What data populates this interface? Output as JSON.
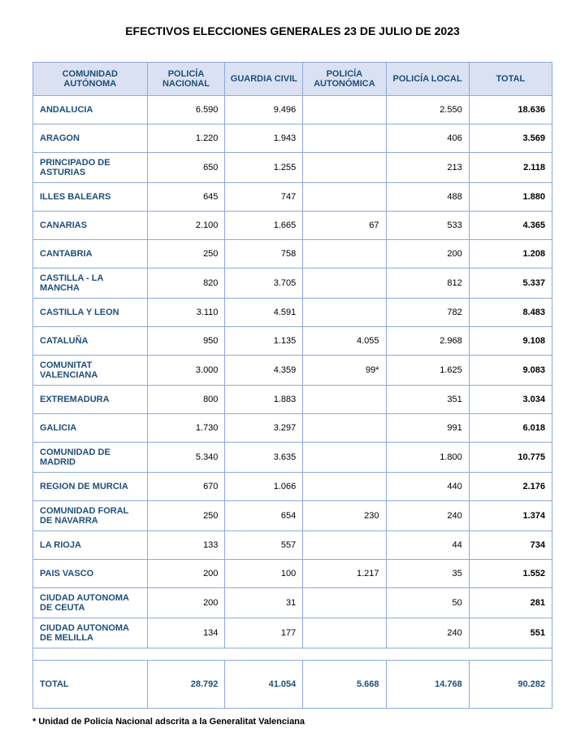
{
  "title": "EFECTIVOS ELECCIONES GENERALES 23 DE JULIO DE 2023",
  "columns": [
    "COMUNIDAD AUTÓNOMA",
    "POLICÍA NACIONAL",
    "GUARDIA CIVIL",
    "POLICÍA AUTONÓMICA",
    "POLICÍA LOCAL",
    "TOTAL"
  ],
  "rows": [
    {
      "c0": "ANDALUCIA",
      "c1": "6.590",
      "c2": "9.496",
      "c3": "",
      "c4": "2.550",
      "c5": "18.636"
    },
    {
      "c0": "ARAGON",
      "c1": "1.220",
      "c2": "1.943",
      "c3": "",
      "c4": "406",
      "c5": "3.569"
    },
    {
      "c0": "PRINCIPADO DE ASTURIAS",
      "c1": "650",
      "c2": "1.255",
      "c3": "",
      "c4": "213",
      "c5": "2.118"
    },
    {
      "c0": "ILLES BALEARS",
      "c1": "645",
      "c2": "747",
      "c3": "",
      "c4": "488",
      "c5": "1.880"
    },
    {
      "c0": "CANARIAS",
      "c1": "2.100",
      "c2": "1.665",
      "c3": "67",
      "c4": "533",
      "c5": "4.365"
    },
    {
      "c0": "CANTABRIA",
      "c1": "250",
      "c2": "758",
      "c3": "",
      "c4": "200",
      "c5": "1.208"
    },
    {
      "c0": "CASTILLA - LA MANCHA",
      "c1": "820",
      "c2": "3.705",
      "c3": "",
      "c4": "812",
      "c5": "5.337"
    },
    {
      "c0": "CASTILLA Y LEON",
      "c1": "3.110",
      "c2": "4.591",
      "c3": "",
      "c4": "782",
      "c5": "8.483"
    },
    {
      "c0": "CATALUÑA",
      "c1": "950",
      "c2": "1.135",
      "c3": "4.055",
      "c4": "2.968",
      "c5": "9.108"
    },
    {
      "c0": "COMUNITAT VALENCIANA",
      "c1": "3.000",
      "c2": "4.359",
      "c3": "99*",
      "c4": "1.625",
      "c5": "9.083"
    },
    {
      "c0": "EXTREMADURA",
      "c1": "800",
      "c2": "1.883",
      "c3": "",
      "c4": "351",
      "c5": "3.034"
    },
    {
      "c0": "GALICIA",
      "c1": "1.730",
      "c2": "3.297",
      "c3": "",
      "c4": "991",
      "c5": "6.018"
    },
    {
      "c0": "COMUNIDAD DE MADRID",
      "c1": "5.340",
      "c2": "3.635",
      "c3": "",
      "c4": "1.800",
      "c5": "10.775"
    },
    {
      "c0": "REGION DE MURCIA",
      "c1": "670",
      "c2": "1.066",
      "c3": "",
      "c4": "440",
      "c5": "2.176"
    },
    {
      "c0": "COMUNIDAD FORAL DE NAVARRA",
      "c1": "250",
      "c2": "654",
      "c3": "230",
      "c4": "240",
      "c5": "1.374"
    },
    {
      "c0": "LA RIOJA",
      "c1": "133",
      "c2": "557",
      "c3": "",
      "c4": "44",
      "c5": "734"
    },
    {
      "c0": "PAIS VASCO",
      "c1": "200",
      "c2": "100",
      "c3": "1.217",
      "c4": "35",
      "c5": "1.552"
    },
    {
      "c0": "CIUDAD AUTONOMA DE CEUTA",
      "c1": "200",
      "c2": "31",
      "c3": "",
      "c4": "50",
      "c5": "281"
    },
    {
      "c0": "CIUDAD AUTONOMA DE MELILLA",
      "c1": "134",
      "c2": "177",
      "c3": "",
      "c4": "240",
      "c5": "551"
    }
  ],
  "total": {
    "c0": "TOTAL",
    "c1": "28.792",
    "c2": "41.054",
    "c3": "5.668",
    "c4": "14.768",
    "c5": "90.282"
  },
  "footnote": "* Unidad de Policía Nacional adscrita a la Generalitat Valenciana"
}
